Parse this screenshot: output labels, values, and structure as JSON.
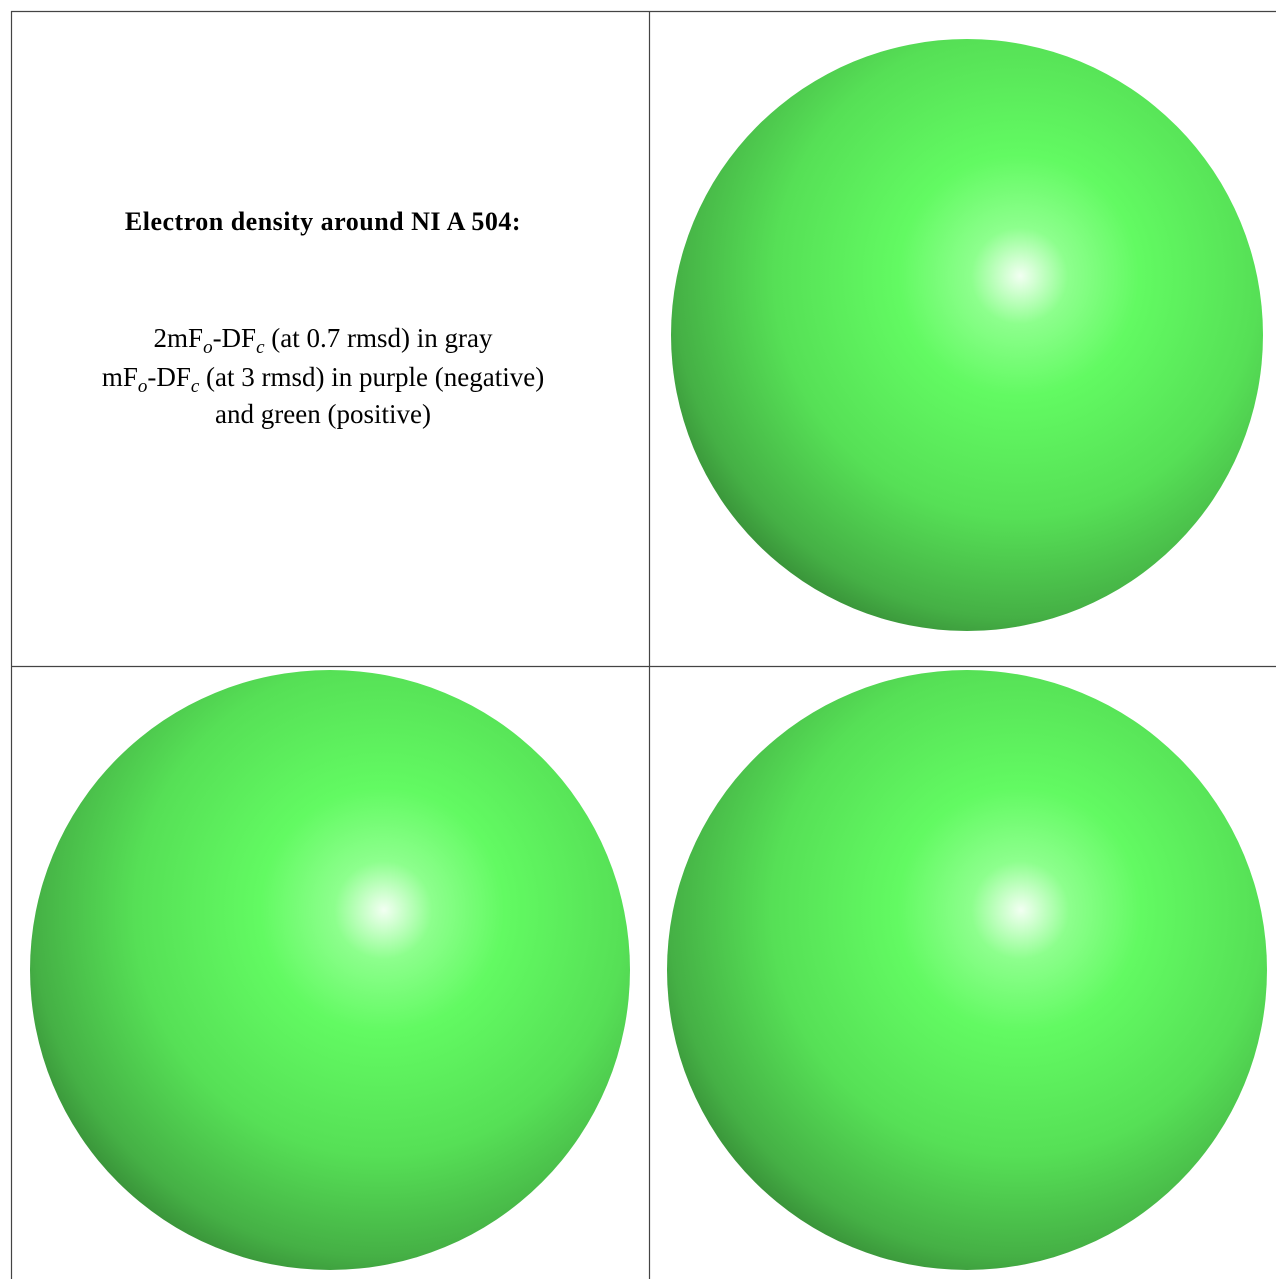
{
  "caption": {
    "title": "Electron density around NI A 504:",
    "lines": [
      [
        "2mF",
        {
          "sub": "o"
        },
        "-DF",
        {
          "sub": "c"
        },
        " (at 0.7 rmsd) in gray"
      ],
      [
        "mF",
        {
          "sub": "o"
        },
        "-DF",
        {
          "sub": "c"
        },
        " (at 3 rmsd) in purple (negative)"
      ],
      [
        "and green (positive)"
      ]
    ]
  }
}
